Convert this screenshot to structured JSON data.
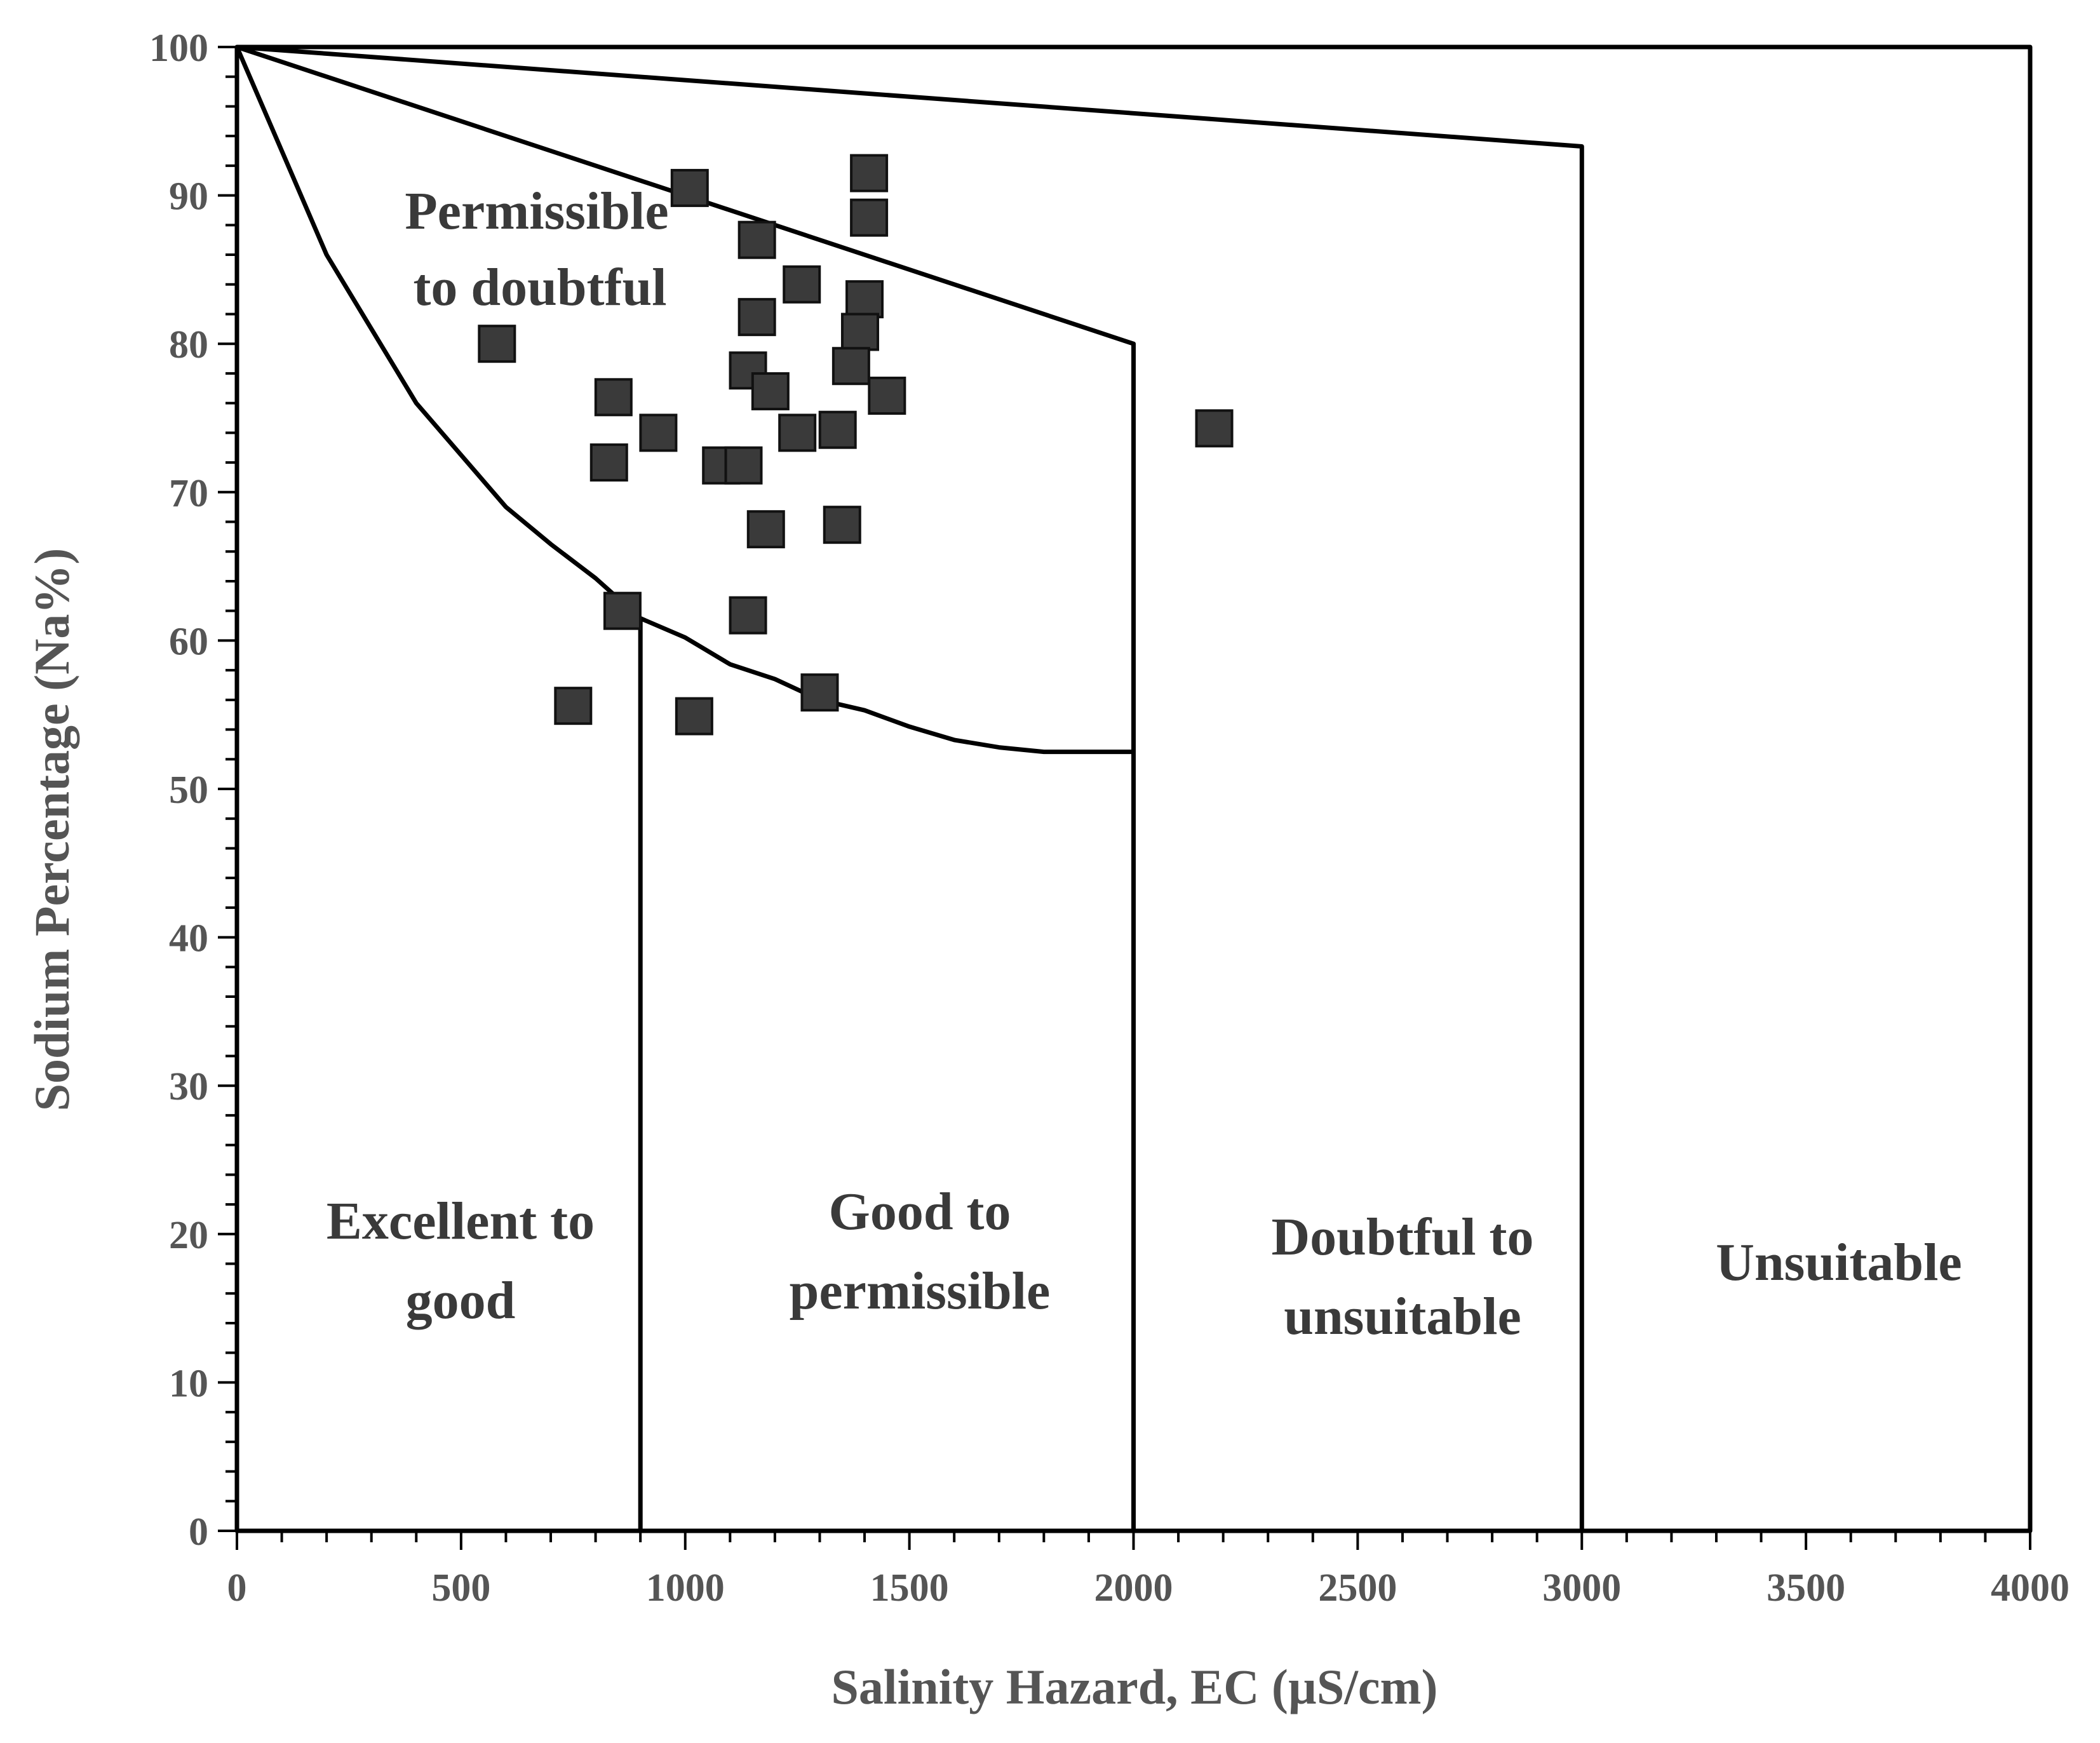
{
  "chart_data": {
    "type": "scatter",
    "title": "",
    "xlabel": "Salinity Hazard, EC (µS/cm)",
    "ylabel": "Sodium Percentage (Na%)",
    "xlim": [
      0,
      4000
    ],
    "ylim": [
      0,
      100
    ],
    "x_ticks": [
      "0",
      "500",
      "1000",
      "1500",
      "2000",
      "2500",
      "3000",
      "3500",
      "4000"
    ],
    "y_ticks": [
      "0",
      "10",
      "20",
      "30",
      "40",
      "50",
      "60",
      "70",
      "80",
      "90",
      "100"
    ],
    "grid": false,
    "legend": null,
    "marker": "square",
    "marker_color": "#3a3a3a",
    "points": [
      {
        "x": 580,
        "y": 80
      },
      {
        "x": 1010,
        "y": 90.5
      },
      {
        "x": 1160,
        "y": 87
      },
      {
        "x": 1410,
        "y": 91.5
      },
      {
        "x": 1410,
        "y": 88.5
      },
      {
        "x": 1260,
        "y": 84
      },
      {
        "x": 1400,
        "y": 83
      },
      {
        "x": 1160,
        "y": 81.8
      },
      {
        "x": 1390,
        "y": 80.8
      },
      {
        "x": 1140,
        "y": 78.2
      },
      {
        "x": 1370,
        "y": 78.5
      },
      {
        "x": 840,
        "y": 76.4
      },
      {
        "x": 1190,
        "y": 76.8
      },
      {
        "x": 1450,
        "y": 76.5
      },
      {
        "x": 940,
        "y": 74
      },
      {
        "x": 1250,
        "y": 74
      },
      {
        "x": 1340,
        "y": 74.2
      },
      {
        "x": 2180,
        "y": 74.3
      },
      {
        "x": 830,
        "y": 72
      },
      {
        "x": 1080,
        "y": 71.8
      },
      {
        "x": 1130,
        "y": 71.8
      },
      {
        "x": 1180,
        "y": 67.5
      },
      {
        "x": 1350,
        "y": 67.8
      },
      {
        "x": 860,
        "y": 62
      },
      {
        "x": 1140,
        "y": 61.7
      },
      {
        "x": 750,
        "y": 55.6
      },
      {
        "x": 1020,
        "y": 54.9
      },
      {
        "x": 1300,
        "y": 56.5
      }
    ],
    "boundaries": [
      {
        "name": "upper-limit-line",
        "points": [
          [
            0,
            100
          ],
          [
            3000,
            93.3
          ],
          [
            3000,
            0
          ]
        ]
      },
      {
        "name": "doubtful-limit-line",
        "points": [
          [
            0,
            100
          ],
          [
            2000,
            80
          ],
          [
            2000,
            0
          ]
        ]
      },
      {
        "name": "lower-curve",
        "points": [
          [
            0,
            100
          ],
          [
            100,
            93
          ],
          [
            200,
            86
          ],
          [
            300,
            81
          ],
          [
            400,
            76
          ],
          [
            500,
            72.5
          ],
          [
            600,
            69
          ],
          [
            700,
            66.5
          ],
          [
            800,
            64.2
          ],
          [
            900,
            61.5
          ],
          [
            1000,
            60.2
          ],
          [
            1100,
            58.4
          ],
          [
            1200,
            57.4
          ],
          [
            1300,
            56
          ],
          [
            1400,
            55.3
          ],
          [
            1500,
            54.2
          ],
          [
            1600,
            53.3
          ],
          [
            1700,
            52.8
          ],
          [
            1800,
            52.5
          ],
          [
            2000,
            52.5
          ]
        ]
      },
      {
        "name": "excellent-good-divider",
        "points": [
          [
            900,
            61.5
          ],
          [
            900,
            0
          ]
        ]
      }
    ],
    "zone_labels": {
      "permissible_to_doubtful": [
        "Permissible",
        "to doubtful"
      ],
      "excellent_to_good": [
        "Excellent to",
        "good"
      ],
      "good_to_permissible": [
        "Good to",
        "permissible"
      ],
      "doubtful_to_unsuitable": [
        "Doubtful to",
        "unsuitable"
      ],
      "unsuitable": [
        "Unsuitable"
      ]
    }
  }
}
